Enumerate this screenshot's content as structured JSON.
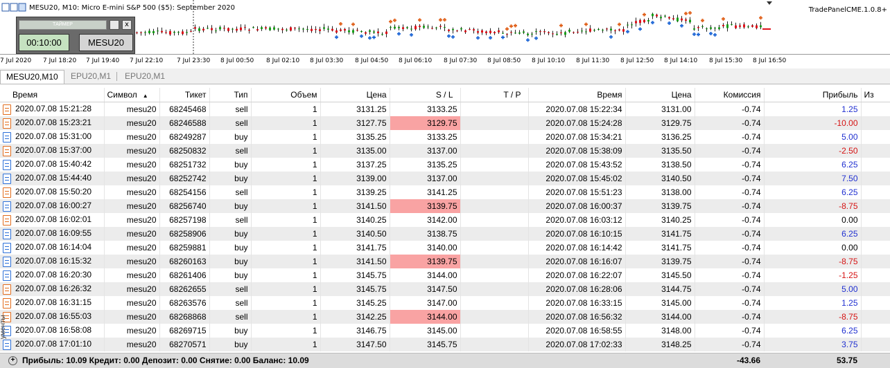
{
  "chart": {
    "title": "MESU20, M10:  Micro E-mini S&P 500 ($5): September 2020",
    "right_label": "TradePanelCME.1.0.8+",
    "time_ticks": [
      "7 Jul 2020",
      "7 Jul 18:20",
      "7 Jul 19:40",
      "7 Jul 22:10",
      "7 Jul 23:30",
      "8 Jul 00:50",
      "8 Jul 02:10",
      "8 Jul 03:30",
      "8 Jul 04:50",
      "8 Jul 06:10",
      "8 Jul 07:30",
      "8 Jul 08:50",
      "8 Jul 10:10",
      "8 Jul 11:30",
      "8 Jul 12:50",
      "8 Jul 14:10",
      "8 Jul 15:30",
      "8 Jul 16:50"
    ],
    "colors": {
      "bull": "#18a018",
      "bear": "#e0101a",
      "sell_marker": "#e0601a",
      "buy_marker": "#1f67d6"
    }
  },
  "timer_panel": {
    "bar_label": "ТАЙМЕР",
    "close_label": "x",
    "time": "00:10:00",
    "symbol": "MESU20"
  },
  "tabs": [
    {
      "label": "MESU20,M10",
      "active": true
    },
    {
      "label": "EPU20,M1",
      "active": false
    },
    {
      "label": "EPU20,M1",
      "active": false
    }
  ],
  "table": {
    "headers": [
      "Время",
      "Символ",
      "Тикет",
      "Тип",
      "Объем",
      "Цена",
      "S / L",
      "T / P",
      "Время",
      "Цена",
      "Комиссия",
      "Прибыль",
      "Из"
    ],
    "rows": [
      [
        "2020.07.08 15:21:28",
        "mesu20",
        "68245468",
        "sell",
        "1",
        "3131.25",
        "3133.25",
        "",
        "2020.07.08 15:22:34",
        "3131.00",
        "-0.74",
        "1.25"
      ],
      [
        "2020.07.08 15:23:21",
        "mesu20",
        "68246588",
        "sell",
        "1",
        "3127.75",
        "3129.75",
        "",
        "2020.07.08 15:24:28",
        "3129.75",
        "-0.74",
        "-10.00"
      ],
      [
        "2020.07.08 15:31:00",
        "mesu20",
        "68249287",
        "buy",
        "1",
        "3135.25",
        "3133.25",
        "",
        "2020.07.08 15:34:21",
        "3136.25",
        "-0.74",
        "5.00"
      ],
      [
        "2020.07.08 15:37:00",
        "mesu20",
        "68250832",
        "sell",
        "1",
        "3135.00",
        "3137.00",
        "",
        "2020.07.08 15:38:09",
        "3135.50",
        "-0.74",
        "-2.50"
      ],
      [
        "2020.07.08 15:40:42",
        "mesu20",
        "68251732",
        "buy",
        "1",
        "3137.25",
        "3135.25",
        "",
        "2020.07.08 15:43:52",
        "3138.50",
        "-0.74",
        "6.25"
      ],
      [
        "2020.07.08 15:44:40",
        "mesu20",
        "68252742",
        "buy",
        "1",
        "3139.00",
        "3137.00",
        "",
        "2020.07.08 15:45:02",
        "3140.50",
        "-0.74",
        "7.50"
      ],
      [
        "2020.07.08 15:50:20",
        "mesu20",
        "68254156",
        "sell",
        "1",
        "3139.25",
        "3141.25",
        "",
        "2020.07.08 15:51:23",
        "3138.00",
        "-0.74",
        "6.25"
      ],
      [
        "2020.07.08 16:00:27",
        "mesu20",
        "68256740",
        "buy",
        "1",
        "3141.50",
        "3139.75",
        "",
        "2020.07.08 16:00:37",
        "3139.75",
        "-0.74",
        "-8.75"
      ],
      [
        "2020.07.08 16:02:01",
        "mesu20",
        "68257198",
        "sell",
        "1",
        "3140.25",
        "3142.00",
        "",
        "2020.07.08 16:03:12",
        "3140.25",
        "-0.74",
        "0.00"
      ],
      [
        "2020.07.08 16:09:55",
        "mesu20",
        "68258906",
        "buy",
        "1",
        "3140.50",
        "3138.75",
        "",
        "2020.07.08 16:10:15",
        "3141.75",
        "-0.74",
        "6.25"
      ],
      [
        "2020.07.08 16:14:04",
        "mesu20",
        "68259881",
        "buy",
        "1",
        "3141.75",
        "3140.00",
        "",
        "2020.07.08 16:14:42",
        "3141.75",
        "-0.74",
        "0.00"
      ],
      [
        "2020.07.08 16:15:32",
        "mesu20",
        "68260163",
        "buy",
        "1",
        "3141.50",
        "3139.75",
        "",
        "2020.07.08 16:16:07",
        "3139.75",
        "-0.74",
        "-8.75"
      ],
      [
        "2020.07.08 16:20:30",
        "mesu20",
        "68261406",
        "buy",
        "1",
        "3145.75",
        "3144.00",
        "",
        "2020.07.08 16:22:07",
        "3145.50",
        "-0.74",
        "-1.25"
      ],
      [
        "2020.07.08 16:26:32",
        "mesu20",
        "68262655",
        "sell",
        "1",
        "3145.75",
        "3147.50",
        "",
        "2020.07.08 16:28:06",
        "3144.75",
        "-0.74",
        "5.00"
      ],
      [
        "2020.07.08 16:31:15",
        "mesu20",
        "68263576",
        "sell",
        "1",
        "3145.25",
        "3147.00",
        "",
        "2020.07.08 16:33:15",
        "3145.00",
        "-0.74",
        "1.25"
      ],
      [
        "2020.07.08 16:55:03",
        "mesu20",
        "68268868",
        "sell",
        "1",
        "3142.25",
        "3144.00",
        "",
        "2020.07.08 16:56:32",
        "3144.00",
        "-0.74",
        "-8.75"
      ],
      [
        "2020.07.08 16:58:08",
        "mesu20",
        "68269715",
        "buy",
        "1",
        "3146.75",
        "3145.00",
        "",
        "2020.07.08 16:58:55",
        "3148.00",
        "-0.74",
        "6.25"
      ],
      [
        "2020.07.08 17:01:10",
        "mesu20",
        "68270571",
        "buy",
        "1",
        "3147.50",
        "3145.75",
        "",
        "2020.07.08 17:02:33",
        "3148.25",
        "-0.74",
        "3.75"
      ]
    ],
    "sl_hit_rows": [
      1,
      7,
      11,
      15
    ]
  },
  "footer": {
    "summary": "Прибыль: 10.09  Кредит: 0.00  Депозит: 0.00  Снятие: 0.00  Баланс: 10.09",
    "commission_total": "-43.66",
    "profit_total": "53.75",
    "side_tab": "ументы"
  }
}
